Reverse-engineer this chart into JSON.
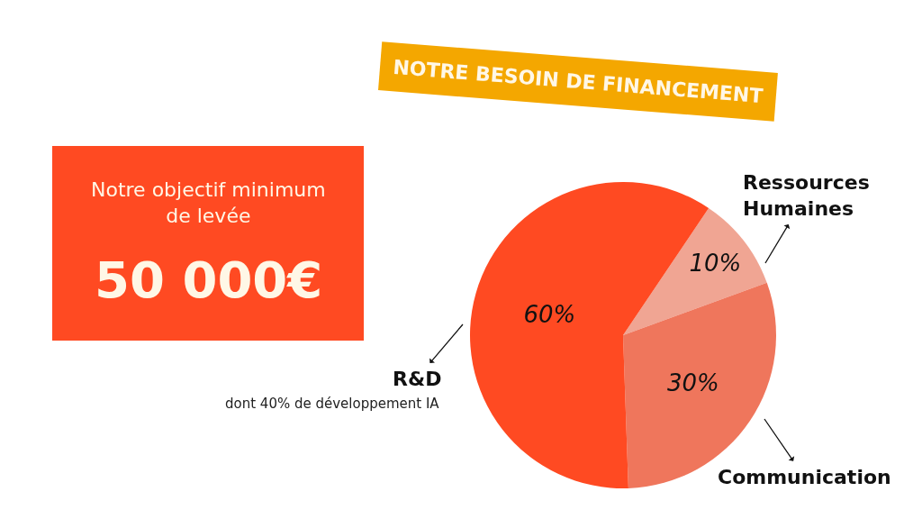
{
  "chart_data": [
    {
      "type": "other",
      "annotations": [
        "Notre objectif minimum de levée",
        "50 000€"
      ]
    },
    {
      "type": "pie",
      "title": "NOTRE BESOIN DE FINANCEMENT",
      "categories": [
        "Ressources Humaines",
        "Communication",
        "R&D"
      ],
      "values": [
        10,
        30,
        60
      ],
      "colors": [
        "#f0a593",
        "#ef765c",
        "#ff4a22"
      ],
      "value_labels": [
        "10%",
        "30%",
        "60%"
      ],
      "annotations": [
        "dont 40% de développement IA"
      ]
    }
  ]
}
